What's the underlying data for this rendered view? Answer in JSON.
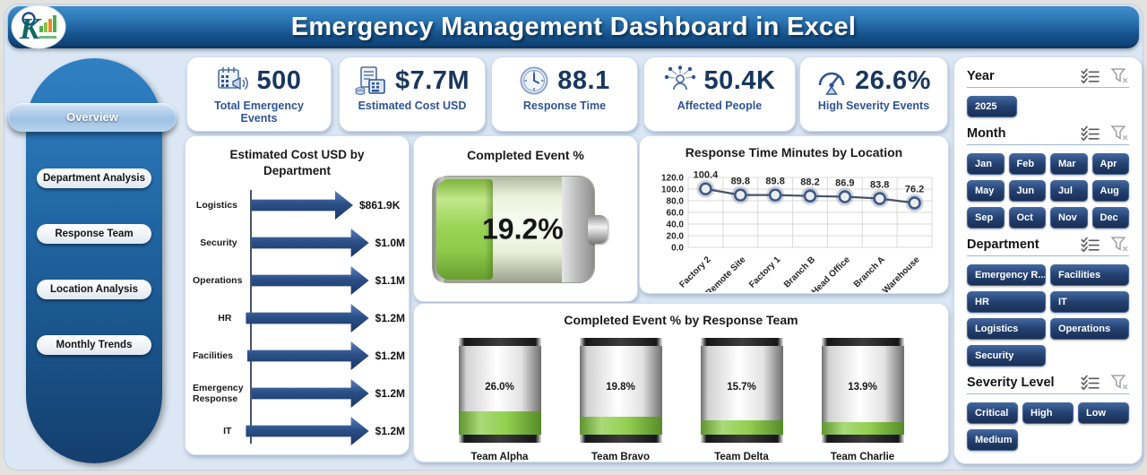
{
  "colors": {
    "header_blue": "#16558f",
    "navy": "#1f3864",
    "accent_green": "#92d050",
    "background": "#dbe7f4",
    "slicer_button": "#24406f",
    "line_series": "#44546a"
  },
  "header": {
    "title": "Emergency Management Dashboard in Excel"
  },
  "sidebar": {
    "items": [
      {
        "label": "Overview",
        "active": true
      },
      {
        "label": "Department Analysis",
        "active": false
      },
      {
        "label": "Response Team",
        "active": false
      },
      {
        "label": "Location Analysis",
        "active": false
      },
      {
        "label": "Monthly Trends",
        "active": false
      }
    ]
  },
  "kpis": [
    {
      "icon": "calendar-megaphone-icon",
      "value": "500",
      "label": "Total Emergency Events"
    },
    {
      "icon": "invoice-calculator-icon",
      "value": "$7.7M",
      "label": "Estimated Cost USD"
    },
    {
      "icon": "clock-icon",
      "value": "88.1",
      "label": "Response Time"
    },
    {
      "icon": "people-network-icon",
      "value": "50.4K",
      "label": "Affected People"
    },
    {
      "icon": "gauge-icon",
      "value": "26.6%",
      "label": "High Severity Events"
    }
  ],
  "chart_data": [
    {
      "type": "bar",
      "style": "arrow-horizontal",
      "title": "Estimated Cost USD by Department",
      "categories": [
        "Logistics",
        "Security",
        "Operations",
        "HR",
        "Facilities",
        "Emergency Response",
        "IT"
      ],
      "values": [
        0.8619,
        1.0,
        1.1,
        1.2,
        1.2,
        1.2,
        1.2
      ],
      "value_labels": [
        "$861.9K",
        "$1.0M",
        "$1.1M",
        "$1.2M",
        "$1.2M",
        "$1.2M",
        "$1.2M"
      ],
      "unit": "USD millions",
      "xlim": [
        0,
        1.2
      ],
      "legend": false
    },
    {
      "type": "gauge",
      "style": "battery-horizontal",
      "title": "Completed Event %",
      "value": 19.2,
      "value_label": "19.2%",
      "range": [
        0,
        100
      ]
    },
    {
      "type": "line",
      "title": "Response Time Minutes by Location",
      "categories": [
        "Factory 2",
        "Remote Site",
        "Factory 1",
        "Branch B",
        "Head Office",
        "Branch A",
        "Warehouse"
      ],
      "values": [
        100.4,
        89.8,
        89.8,
        88.2,
        86.9,
        83.8,
        76.2
      ],
      "ylim": [
        0,
        120
      ],
      "ytick_step": 20,
      "ytick_labels": [
        "0.0",
        "20.0",
        "40.0",
        "60.0",
        "80.0",
        "100.0",
        "120.0"
      ],
      "grid": true,
      "legend": false,
      "marker": "circle"
    },
    {
      "type": "bar",
      "style": "battery-vertical",
      "title": "Completed Event % by Response Team",
      "categories": [
        "Team Alpha",
        "Team Bravo",
        "Team Delta",
        "Team Charlie"
      ],
      "values": [
        26.0,
        19.8,
        15.7,
        13.9
      ],
      "value_labels": [
        "26.0%",
        "19.8%",
        "15.7%",
        "13.9%"
      ],
      "ylim": [
        0,
        100
      ],
      "legend": false
    }
  ],
  "slicers": [
    {
      "title": "Year",
      "items": [
        "2025"
      ]
    },
    {
      "title": "Month",
      "items": [
        "Jan",
        "Feb",
        "Mar",
        "Apr",
        "May",
        "Jun",
        "Jul",
        "Aug",
        "Sep",
        "Oct",
        "Nov",
        "Dec"
      ]
    },
    {
      "title": "Department",
      "items": [
        "Emergency R...",
        "Facilities",
        "HR",
        "IT",
        "Logistics",
        "Operations",
        "Security"
      ]
    },
    {
      "title": "Severity Level",
      "items": [
        "Critical",
        "High",
        "Low",
        "Medium"
      ]
    }
  ]
}
